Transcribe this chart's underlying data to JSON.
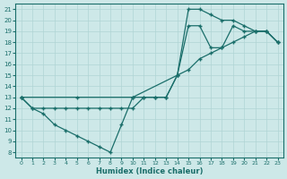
{
  "xlabel": "Humidex (Indice chaleur)",
  "bg_color": "#cde8e8",
  "line_color": "#1a6e6a",
  "grid_color": "#b0d4d4",
  "xlim": [
    -0.5,
    23.5
  ],
  "ylim": [
    7.5,
    21.5
  ],
  "xticks": [
    0,
    1,
    2,
    3,
    4,
    5,
    6,
    7,
    8,
    9,
    10,
    11,
    12,
    13,
    14,
    15,
    16,
    17,
    18,
    19,
    20,
    21,
    22,
    23
  ],
  "yticks": [
    8,
    9,
    10,
    11,
    12,
    13,
    14,
    15,
    16,
    17,
    18,
    19,
    20,
    21
  ],
  "lines": [
    {
      "x": [
        0,
        1,
        2,
        3,
        4,
        5,
        6,
        7,
        8,
        9,
        10,
        11,
        12,
        13,
        14,
        15,
        16,
        17,
        18,
        19,
        20,
        21,
        22,
        23
      ],
      "y": [
        13,
        12,
        11.5,
        10.5,
        10,
        9.5,
        9,
        8.5,
        8,
        10.5,
        13,
        13,
        13,
        13,
        15,
        19.5,
        19.5,
        17.5,
        17.5,
        19.5,
        19,
        19,
        19,
        18
      ]
    },
    {
      "x": [
        0,
        1,
        2,
        3,
        4,
        5,
        6,
        7,
        8,
        9,
        10,
        11,
        12,
        13,
        14,
        15,
        16,
        17,
        18,
        19,
        20,
        21,
        22,
        23
      ],
      "y": [
        13,
        12,
        12,
        12,
        12,
        12,
        12,
        12,
        12,
        12,
        12,
        13,
        13,
        13,
        15,
        21,
        21,
        20.5,
        20,
        20,
        19.5,
        19,
        19,
        18
      ]
    },
    {
      "x": [
        0,
        5,
        10,
        14,
        15,
        16,
        17,
        18,
        19,
        20,
        21,
        22,
        23
      ],
      "y": [
        13,
        13,
        13,
        15,
        15.5,
        16.5,
        17,
        17.5,
        18,
        18.5,
        19,
        19,
        18
      ]
    }
  ]
}
